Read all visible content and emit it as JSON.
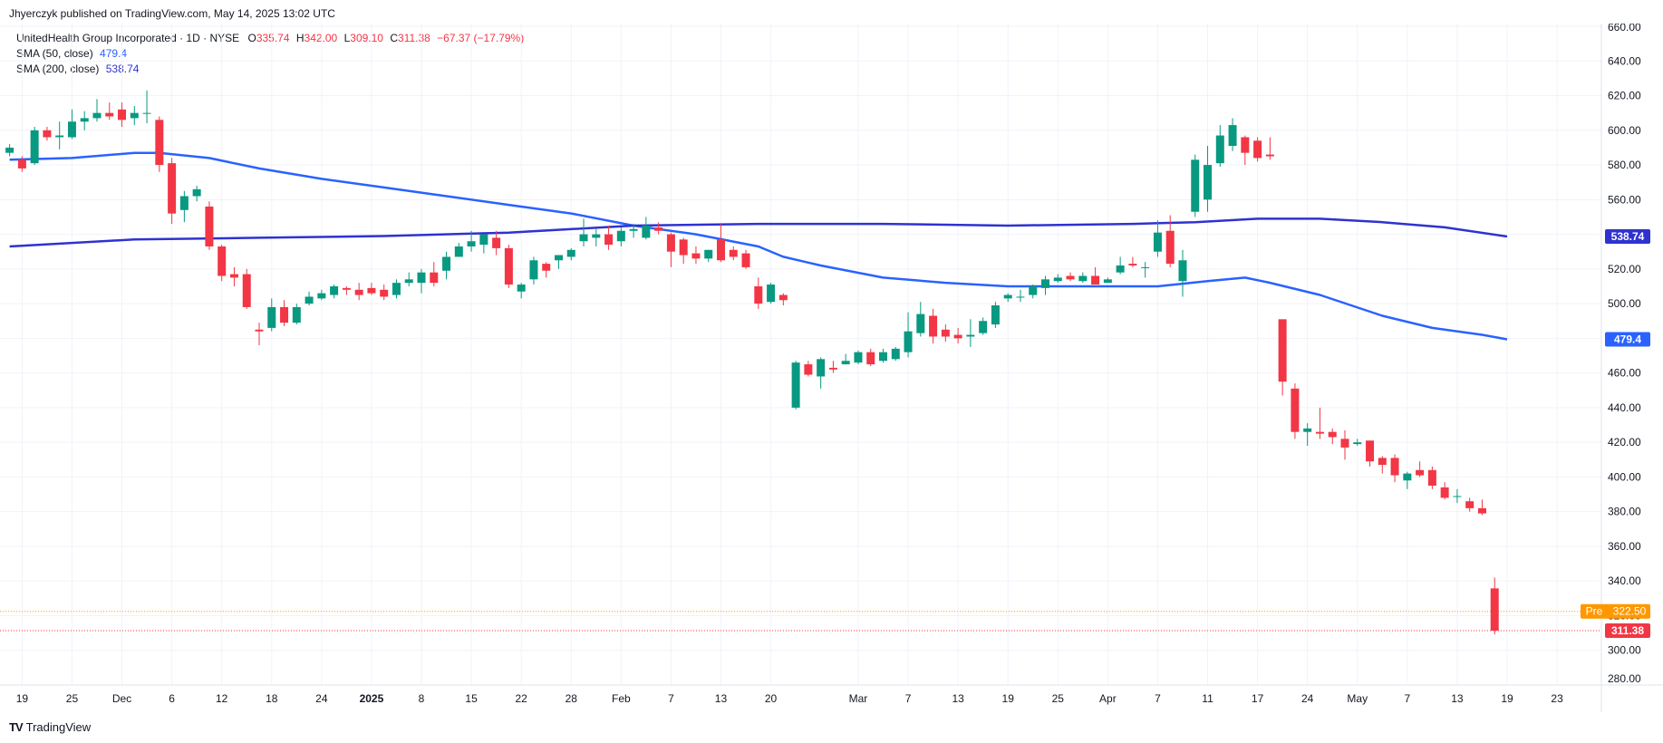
{
  "header": {
    "published": "Jhyerczyk published on TradingView.com, May 14, 2025 13:02 UTC"
  },
  "legend": {
    "symbol": "UnitedHealth Group Incorporated · 1D · NYSE",
    "o_label": "O",
    "o_value": "335.74",
    "h_label": "H",
    "h_value": "342.00",
    "l_label": "L",
    "l_value": "309.10",
    "c_label": "C",
    "c_value": "311.38",
    "change": "−67.37 (−17.79%)",
    "sma50_label": "SMA (50, close)",
    "sma50_value": "479.4",
    "sma200_label": "SMA (200, close)",
    "sma200_value": "538.74"
  },
  "price_tags": {
    "sma200": "538.74",
    "sma50": "479.4",
    "pre_label": "Pre",
    "pre_value": "322.50",
    "last": "311.38"
  },
  "brand": {
    "name": "TradingView",
    "logo_glyph": "TV"
  },
  "colors": {
    "up": "#089981",
    "down": "#f23645",
    "sma50": "#2962ff",
    "sma200": "#2f32d0",
    "pre": "#ff9800",
    "grid": "#f0f3fa",
    "axis_text": "#131722"
  },
  "chart_data": {
    "type": "candlestick",
    "title": "UnitedHealth Group Incorporated · 1D · NYSE",
    "ylim": [
      280,
      660
    ],
    "y_ticks": [
      280,
      300,
      320,
      340,
      360,
      380,
      400,
      420,
      440,
      460,
      480,
      500,
      520,
      540,
      560,
      580,
      600,
      620,
      640,
      660
    ],
    "y_tick_labels": [
      "280.00",
      "300.00",
      "320.00",
      "340.00",
      "360.00",
      "380.00",
      "400.00",
      "420.00",
      "440.00",
      "460.00",
      "480.00",
      "500.00",
      "520.00",
      "540.00",
      "560.00",
      "580.00",
      "600.00",
      "620.00",
      "640.00",
      "660.00"
    ],
    "x_ticks": [
      {
        "i": 1,
        "label": "19"
      },
      {
        "i": 5,
        "label": "25"
      },
      {
        "i": 9,
        "label": "Dec"
      },
      {
        "i": 13,
        "label": "6"
      },
      {
        "i": 17,
        "label": "12"
      },
      {
        "i": 21,
        "label": "18"
      },
      {
        "i": 25,
        "label": "24"
      },
      {
        "i": 29,
        "label": "2025"
      },
      {
        "i": 33,
        "label": "8"
      },
      {
        "i": 37,
        "label": "15"
      },
      {
        "i": 41,
        "label": "22"
      },
      {
        "i": 45,
        "label": "28"
      },
      {
        "i": 49,
        "label": "Feb"
      },
      {
        "i": 53,
        "label": "7"
      },
      {
        "i": 57,
        "label": "13"
      },
      {
        "i": 61,
        "label": "20"
      },
      {
        "i": 68,
        "label": "Mar"
      },
      {
        "i": 72,
        "label": "7"
      },
      {
        "i": 76,
        "label": "13"
      },
      {
        "i": 80,
        "label": "19"
      },
      {
        "i": 84,
        "label": "25"
      },
      {
        "i": 88,
        "label": "Apr"
      },
      {
        "i": 92,
        "label": "7"
      },
      {
        "i": 96,
        "label": "11"
      },
      {
        "i": 100,
        "label": "17"
      },
      {
        "i": 104,
        "label": "24"
      },
      {
        "i": 108,
        "label": "May"
      },
      {
        "i": 112,
        "label": "7"
      },
      {
        "i": 116,
        "label": "13"
      },
      {
        "i": 120,
        "label": "19"
      },
      {
        "i": 124,
        "label": "23"
      }
    ],
    "candles": [
      {
        "i": 0,
        "o": 587,
        "h": 592,
        "l": 585,
        "c": 590
      },
      {
        "i": 1,
        "o": 583,
        "h": 585,
        "l": 576,
        "c": 578
      },
      {
        "i": 2,
        "o": 581,
        "h": 602,
        "l": 580,
        "c": 600
      },
      {
        "i": 3,
        "o": 600,
        "h": 602,
        "l": 594,
        "c": 596
      },
      {
        "i": 4,
        "o": 596,
        "h": 605,
        "l": 589,
        "c": 597
      },
      {
        "i": 5,
        "o": 596,
        "h": 612,
        "l": 595,
        "c": 605
      },
      {
        "i": 6,
        "o": 605,
        "h": 611,
        "l": 600,
        "c": 607
      },
      {
        "i": 7,
        "o": 607,
        "h": 618,
        "l": 605,
        "c": 610
      },
      {
        "i": 8,
        "o": 610,
        "h": 616,
        "l": 606,
        "c": 608
      },
      {
        "i": 9,
        "o": 612,
        "h": 616,
        "l": 602,
        "c": 606
      },
      {
        "i": 10,
        "o": 607,
        "h": 614,
        "l": 603,
        "c": 610
      },
      {
        "i": 11,
        "o": 610,
        "h": 623,
        "l": 604,
        "c": 610
      },
      {
        "i": 12,
        "o": 606,
        "h": 608,
        "l": 576,
        "c": 580
      },
      {
        "i": 13,
        "o": 581,
        "h": 584,
        "l": 546,
        "c": 552
      },
      {
        "i": 14,
        "o": 554,
        "h": 565,
        "l": 547,
        "c": 562
      },
      {
        "i": 15,
        "o": 562,
        "h": 568,
        "l": 559,
        "c": 566
      },
      {
        "i": 16,
        "o": 556,
        "h": 559,
        "l": 531,
        "c": 533
      },
      {
        "i": 17,
        "o": 533,
        "h": 534,
        "l": 513,
        "c": 516
      },
      {
        "i": 18,
        "o": 517,
        "h": 521,
        "l": 510,
        "c": 515
      },
      {
        "i": 19,
        "o": 517,
        "h": 520,
        "l": 497,
        "c": 498
      },
      {
        "i": 20,
        "o": 485,
        "h": 489,
        "l": 476,
        "c": 484
      },
      {
        "i": 21,
        "o": 486,
        "h": 503,
        "l": 484,
        "c": 498
      },
      {
        "i": 22,
        "o": 498,
        "h": 502,
        "l": 487,
        "c": 489
      },
      {
        "i": 23,
        "o": 489,
        "h": 500,
        "l": 488,
        "c": 498
      },
      {
        "i": 24,
        "o": 500,
        "h": 507,
        "l": 499,
        "c": 504
      },
      {
        "i": 25,
        "o": 503,
        "h": 508,
        "l": 502,
        "c": 506
      },
      {
        "i": 26,
        "o": 505,
        "h": 511,
        "l": 503,
        "c": 510
      },
      {
        "i": 27,
        "o": 509,
        "h": 510,
        "l": 505,
        "c": 508
      },
      {
        "i": 28,
        "o": 508,
        "h": 512,
        "l": 502,
        "c": 505
      },
      {
        "i": 29,
        "o": 509,
        "h": 512,
        "l": 505,
        "c": 506
      },
      {
        "i": 30,
        "o": 508,
        "h": 511,
        "l": 502,
        "c": 504
      },
      {
        "i": 31,
        "o": 505,
        "h": 514,
        "l": 503,
        "c": 512
      },
      {
        "i": 32,
        "o": 512,
        "h": 518,
        "l": 510,
        "c": 514
      },
      {
        "i": 33,
        "o": 512,
        "h": 520,
        "l": 506,
        "c": 518
      },
      {
        "i": 34,
        "o": 518,
        "h": 524,
        "l": 510,
        "c": 512
      },
      {
        "i": 35,
        "o": 519,
        "h": 530,
        "l": 514,
        "c": 527
      },
      {
        "i": 36,
        "o": 527,
        "h": 535,
        "l": 527,
        "c": 533
      },
      {
        "i": 37,
        "o": 533,
        "h": 542,
        "l": 530,
        "c": 536
      },
      {
        "i": 38,
        "o": 534,
        "h": 540,
        "l": 529,
        "c": 540
      },
      {
        "i": 39,
        "o": 538,
        "h": 542,
        "l": 528,
        "c": 532
      },
      {
        "i": 40,
        "o": 532,
        "h": 534,
        "l": 509,
        "c": 511
      },
      {
        "i": 41,
        "o": 507,
        "h": 512,
        "l": 503,
        "c": 511
      },
      {
        "i": 42,
        "o": 514,
        "h": 527,
        "l": 511,
        "c": 525
      },
      {
        "i": 43,
        "o": 523,
        "h": 524,
        "l": 515,
        "c": 519
      },
      {
        "i": 44,
        "o": 525,
        "h": 528,
        "l": 520,
        "c": 528
      },
      {
        "i": 45,
        "o": 527,
        "h": 532,
        "l": 525,
        "c": 531
      },
      {
        "i": 46,
        "o": 536,
        "h": 549,
        "l": 533,
        "c": 540
      },
      {
        "i": 47,
        "o": 538,
        "h": 543,
        "l": 533,
        "c": 540
      },
      {
        "i": 48,
        "o": 540,
        "h": 545,
        "l": 531,
        "c": 534
      },
      {
        "i": 49,
        "o": 536,
        "h": 544,
        "l": 533,
        "c": 542
      },
      {
        "i": 50,
        "o": 542,
        "h": 546,
        "l": 538,
        "c": 543
      },
      {
        "i": 51,
        "o": 538,
        "h": 550,
        "l": 537,
        "c": 545
      },
      {
        "i": 52,
        "o": 544,
        "h": 547,
        "l": 540,
        "c": 542
      },
      {
        "i": 53,
        "o": 540,
        "h": 541,
        "l": 521,
        "c": 530
      },
      {
        "i": 54,
        "o": 537,
        "h": 538,
        "l": 523,
        "c": 528
      },
      {
        "i": 55,
        "o": 529,
        "h": 533,
        "l": 523,
        "c": 526
      },
      {
        "i": 56,
        "o": 526,
        "h": 531,
        "l": 524,
        "c": 531
      },
      {
        "i": 57,
        "o": 537,
        "h": 546,
        "l": 524,
        "c": 525
      },
      {
        "i": 58,
        "o": 531,
        "h": 533,
        "l": 525,
        "c": 527
      },
      {
        "i": 59,
        "o": 529,
        "h": 531,
        "l": 520,
        "c": 521
      },
      {
        "i": 60,
        "o": 510,
        "h": 515,
        "l": 497,
        "c": 500
      },
      {
        "i": 61,
        "o": 501,
        "h": 512,
        "l": 500,
        "c": 511
      },
      {
        "i": 62,
        "o": 505,
        "h": 506,
        "l": 499,
        "c": 502
      },
      {
        "i": 63,
        "o": 440,
        "h": 467,
        "l": 439,
        "c": 466
      },
      {
        "i": 64,
        "o": 465,
        "h": 467,
        "l": 458,
        "c": 459
      },
      {
        "i": 65,
        "o": 458,
        "h": 469,
        "l": 451,
        "c": 468
      },
      {
        "i": 66,
        "o": 463,
        "h": 467,
        "l": 460,
        "c": 462
      },
      {
        "i": 67,
        "o": 465,
        "h": 471,
        "l": 465,
        "c": 467
      },
      {
        "i": 68,
        "o": 466,
        "h": 473,
        "l": 465,
        "c": 472
      },
      {
        "i": 69,
        "o": 472,
        "h": 474,
        "l": 464,
        "c": 465
      },
      {
        "i": 70,
        "o": 467,
        "h": 474,
        "l": 466,
        "c": 472
      },
      {
        "i": 71,
        "o": 468,
        "h": 475,
        "l": 467,
        "c": 474
      },
      {
        "i": 72,
        "o": 472,
        "h": 495,
        "l": 469,
        "c": 484
      },
      {
        "i": 73,
        "o": 483,
        "h": 501,
        "l": 481,
        "c": 494
      },
      {
        "i": 74,
        "o": 493,
        "h": 497,
        "l": 477,
        "c": 481
      },
      {
        "i": 75,
        "o": 485,
        "h": 488,
        "l": 478,
        "c": 481
      },
      {
        "i": 76,
        "o": 482,
        "h": 486,
        "l": 477,
        "c": 480
      },
      {
        "i": 77,
        "o": 481,
        "h": 491,
        "l": 475,
        "c": 482
      },
      {
        "i": 78,
        "o": 483,
        "h": 492,
        "l": 482,
        "c": 490
      },
      {
        "i": 79,
        "o": 488,
        "h": 501,
        "l": 486,
        "c": 499
      },
      {
        "i": 80,
        "o": 503,
        "h": 506,
        "l": 501,
        "c": 505
      },
      {
        "i": 81,
        "o": 504,
        "h": 508,
        "l": 501,
        "c": 504
      },
      {
        "i": 82,
        "o": 505,
        "h": 511,
        "l": 503,
        "c": 510
      },
      {
        "i": 83,
        "o": 509,
        "h": 516,
        "l": 505,
        "c": 514
      },
      {
        "i": 84,
        "o": 513,
        "h": 517,
        "l": 512,
        "c": 515
      },
      {
        "i": 85,
        "o": 516,
        "h": 518,
        "l": 513,
        "c": 514
      },
      {
        "i": 86,
        "o": 513,
        "h": 518,
        "l": 512,
        "c": 516
      },
      {
        "i": 87,
        "o": 516,
        "h": 521,
        "l": 512,
        "c": 511
      },
      {
        "i": 88,
        "o": 512,
        "h": 515,
        "l": 512,
        "c": 514
      },
      {
        "i": 89,
        "o": 518,
        "h": 527,
        "l": 517,
        "c": 522
      },
      {
        "i": 90,
        "o": 523,
        "h": 527,
        "l": 521,
        "c": 522
      },
      {
        "i": 91,
        "o": 521,
        "h": 524,
        "l": 515,
        "c": 521
      },
      {
        "i": 92,
        "o": 530,
        "h": 548,
        "l": 527,
        "c": 541
      },
      {
        "i": 93,
        "o": 542,
        "h": 551,
        "l": 521,
        "c": 523
      },
      {
        "i": 94,
        "o": 513,
        "h": 531,
        "l": 504,
        "c": 525
      },
      {
        "i": 95,
        "o": 553,
        "h": 586,
        "l": 550,
        "c": 583
      },
      {
        "i": 96,
        "o": 560,
        "h": 591,
        "l": 553,
        "c": 580
      },
      {
        "i": 97,
        "o": 581,
        "h": 603,
        "l": 579,
        "c": 597
      },
      {
        "i": 98,
        "o": 591,
        "h": 607,
        "l": 588,
        "c": 603
      },
      {
        "i": 99,
        "o": 596,
        "h": 597,
        "l": 580,
        "c": 587
      },
      {
        "i": 100,
        "o": 594,
        "h": 596,
        "l": 582,
        "c": 584
      },
      {
        "i": 101,
        "o": 586,
        "h": 596,
        "l": 583,
        "c": 585
      },
      {
        "i": 102,
        "o": 491,
        "h": 490,
        "l": 447,
        "c": 455
      },
      {
        "i": 103,
        "o": 451,
        "h": 454,
        "l": 422,
        "c": 426
      },
      {
        "i": 104,
        "o": 426,
        "h": 431,
        "l": 418,
        "c": 428
      },
      {
        "i": 105,
        "o": 426,
        "h": 440,
        "l": 422,
        "c": 425
      },
      {
        "i": 106,
        "o": 426,
        "h": 428,
        "l": 419,
        "c": 423
      },
      {
        "i": 107,
        "o": 422,
        "h": 427,
        "l": 410,
        "c": 417
      },
      {
        "i": 108,
        "o": 419,
        "h": 422,
        "l": 418,
        "c": 420
      },
      {
        "i": 109,
        "o": 421,
        "h": 421,
        "l": 406,
        "c": 409
      },
      {
        "i": 110,
        "o": 411,
        "h": 412,
        "l": 402,
        "c": 407
      },
      {
        "i": 111,
        "o": 411,
        "h": 413,
        "l": 397,
        "c": 401
      },
      {
        "i": 112,
        "o": 398,
        "h": 403,
        "l": 393,
        "c": 402
      },
      {
        "i": 113,
        "o": 404,
        "h": 409,
        "l": 400,
        "c": 401
      },
      {
        "i": 114,
        "o": 404,
        "h": 406,
        "l": 393,
        "c": 395
      },
      {
        "i": 115,
        "o": 394,
        "h": 397,
        "l": 387,
        "c": 388
      },
      {
        "i": 116,
        "o": 389,
        "h": 393,
        "l": 385,
        "c": 389
      },
      {
        "i": 117,
        "o": 386,
        "h": 388,
        "l": 380,
        "c": 382
      },
      {
        "i": 118,
        "o": 382,
        "h": 387,
        "l": 378,
        "c": 379
      },
      {
        "i": 119,
        "o": 335.74,
        "h": 342,
        "l": 309.1,
        "c": 311.38
      }
    ],
    "series": [
      {
        "name": "SMA (50, close)",
        "points": [
          [
            0,
            583
          ],
          [
            5,
            584
          ],
          [
            10,
            587
          ],
          [
            12,
            587
          ],
          [
            16,
            584
          ],
          [
            20,
            578
          ],
          [
            25,
            572
          ],
          [
            30,
            567
          ],
          [
            35,
            562
          ],
          [
            40,
            557
          ],
          [
            45,
            552
          ],
          [
            50,
            545
          ],
          [
            55,
            540
          ],
          [
            60,
            533
          ],
          [
            62,
            527
          ],
          [
            65,
            522
          ],
          [
            70,
            515
          ],
          [
            75,
            512
          ],
          [
            80,
            510
          ],
          [
            85,
            510
          ],
          [
            88,
            510
          ],
          [
            92,
            510
          ],
          [
            96,
            513
          ],
          [
            99,
            515
          ],
          [
            101,
            512
          ],
          [
            105,
            505
          ],
          [
            110,
            493
          ],
          [
            114,
            486
          ],
          [
            118,
            482
          ],
          [
            120,
            479.4
          ]
        ]
      },
      {
        "name": "SMA (200, close)",
        "points": [
          [
            0,
            533
          ],
          [
            10,
            537
          ],
          [
            20,
            538
          ],
          [
            30,
            539
          ],
          [
            40,
            541
          ],
          [
            50,
            545
          ],
          [
            60,
            546
          ],
          [
            70,
            546
          ],
          [
            80,
            545
          ],
          [
            90,
            546
          ],
          [
            95,
            547
          ],
          [
            100,
            549
          ],
          [
            105,
            549
          ],
          [
            110,
            547
          ],
          [
            115,
            544
          ],
          [
            120,
            538.74
          ]
        ]
      }
    ],
    "price_lines": [
      {
        "name": "Pre",
        "value": 322.5
      },
      {
        "name": "Last",
        "value": 311.38
      }
    ]
  }
}
